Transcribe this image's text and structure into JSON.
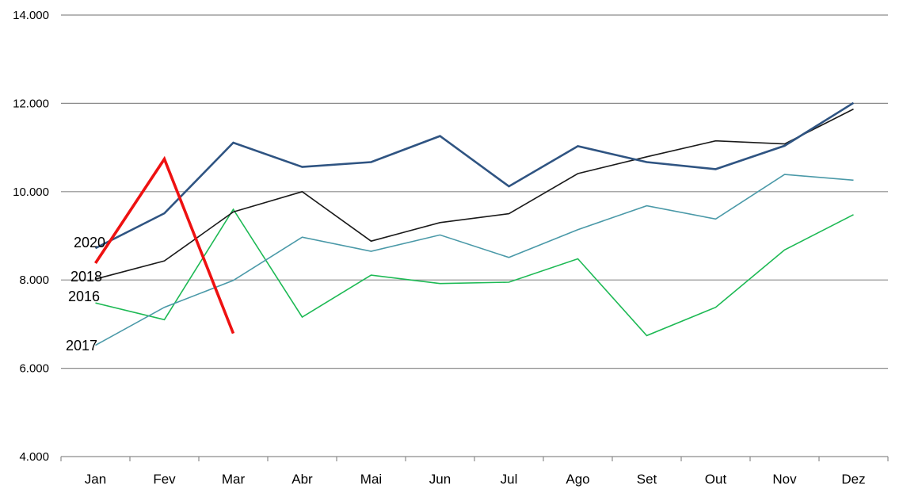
{
  "chart_data": {
    "type": "line",
    "categories": [
      "Jan",
      "Fev",
      "Mar",
      "Abr",
      "Mai",
      "Jun",
      "Jul",
      "Ago",
      "Set",
      "Out",
      "Nov",
      "Dez"
    ],
    "ylim": [
      4000,
      14000
    ],
    "yticks": [
      4000,
      6000,
      8000,
      10000,
      12000,
      14000
    ],
    "ytick_labels": [
      "4.000",
      "6.000",
      "8.000",
      "10.000",
      "12.000",
      "14.000"
    ],
    "grid": true,
    "series": [
      {
        "name": "2016",
        "color": "#1db954",
        "stroke_width": 1.6,
        "values": [
          7480,
          7100,
          9600,
          7160,
          8110,
          7920,
          7950,
          8480,
          6740,
          7380,
          8680,
          9480
        ]
      },
      {
        "name": "2017",
        "color": "#4a99a8",
        "stroke_width": 1.6,
        "values": [
          6520,
          7380,
          7990,
          8970,
          8650,
          9020,
          8510,
          9140,
          9680,
          9380,
          10390,
          10260
        ]
      },
      {
        "name": "2018",
        "color": "#1a1a1a",
        "stroke_width": 1.6,
        "values": [
          8020,
          8430,
          9540,
          10000,
          8880,
          9300,
          9500,
          10410,
          10790,
          11150,
          11080,
          11870
        ]
      },
      {
        "name": "2020",
        "color": "#2f5482",
        "stroke_width": 2.6,
        "values": [
          8720,
          9510,
          11110,
          10560,
          10670,
          11260,
          10120,
          11030,
          10670,
          10510,
          11040,
          12010
        ]
      },
      {
        "name": "",
        "color": "#ee1111",
        "stroke_width": 3.6,
        "values": [
          8380,
          10740,
          6790,
          null,
          null,
          null,
          null,
          null,
          null,
          null,
          null,
          null
        ]
      }
    ],
    "annotations": [
      {
        "text": "2020",
        "series": "2020"
      },
      {
        "text": "2018",
        "series": "2018"
      },
      {
        "text": "2016",
        "series": "2016"
      },
      {
        "text": "2017",
        "series": "2017"
      }
    ]
  }
}
